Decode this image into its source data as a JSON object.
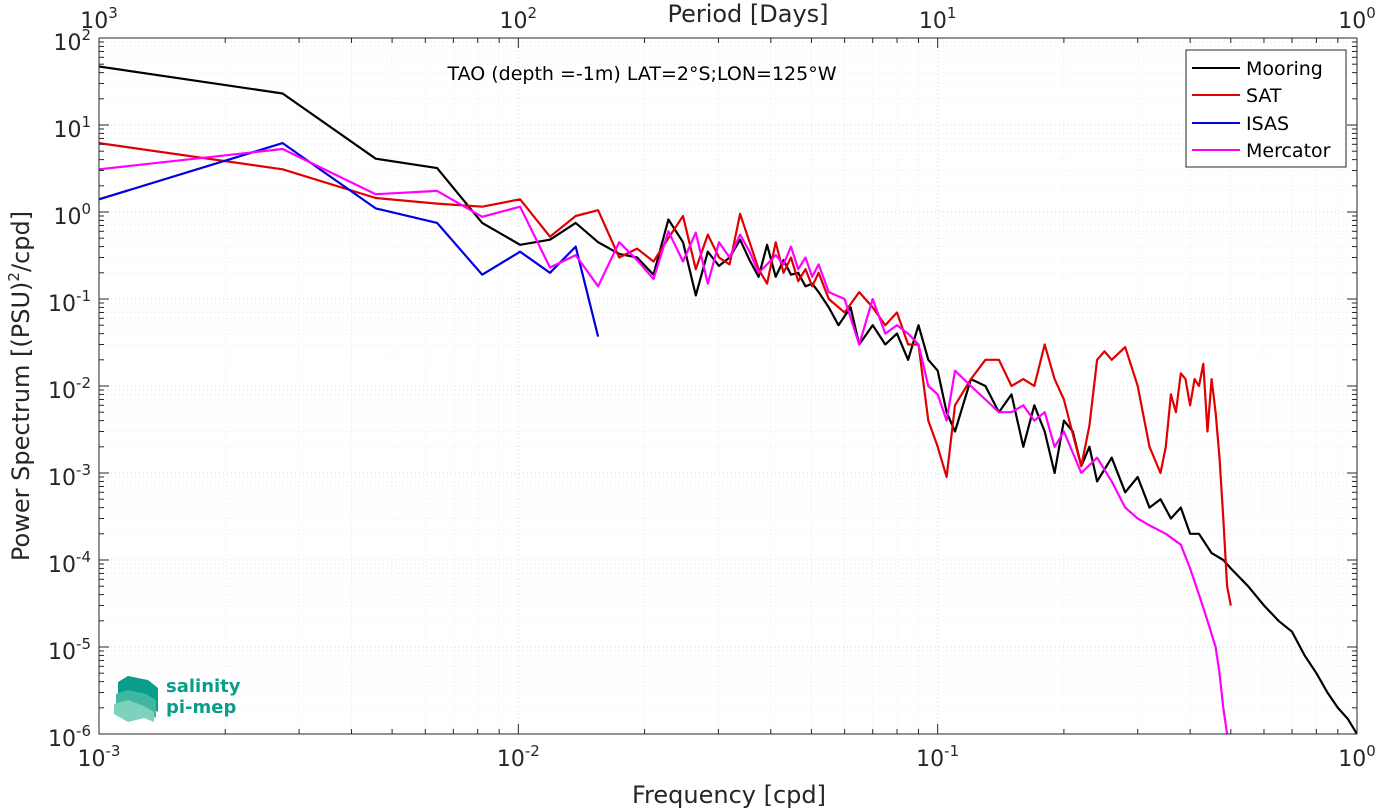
{
  "chart_data": {
    "type": "line",
    "title": "TAO (depth =-1m) LAT=2°S;LON=125°W",
    "xlabel": "Frequency [cpd]",
    "ylabel_parts": [
      "Power Spectrum [(PSU)",
      "2",
      "/cpd]"
    ],
    "top_xlabel": "Period [Days]",
    "x_scale": "log",
    "y_scale": "log",
    "xlim": [
      0.001,
      1
    ],
    "ylim": [
      1e-06,
      100
    ],
    "grid": true,
    "legend_position": "top-right",
    "x_ticks": [
      {
        "value": 0.001,
        "base": "10",
        "exp": "-3"
      },
      {
        "value": 0.01,
        "base": "10",
        "exp": "-2"
      },
      {
        "value": 0.1,
        "base": "10",
        "exp": "-1"
      },
      {
        "value": 1,
        "base": "10",
        "exp": "0"
      }
    ],
    "top_ticks": [
      {
        "value": 0.001,
        "base": "10",
        "exp": "3"
      },
      {
        "value": 0.01,
        "base": "10",
        "exp": "2"
      },
      {
        "value": 0.1,
        "base": "10",
        "exp": "1"
      },
      {
        "value": 1,
        "base": "10",
        "exp": "0"
      }
    ],
    "y_ticks": [
      {
        "value": 100,
        "base": "10",
        "exp": "2"
      },
      {
        "value": 10,
        "base": "10",
        "exp": "1"
      },
      {
        "value": 1,
        "base": "10",
        "exp": "0"
      },
      {
        "value": 0.1,
        "base": "10",
        "exp": "-1"
      },
      {
        "value": 0.01,
        "base": "10",
        "exp": "-2"
      },
      {
        "value": 0.001,
        "base": "10",
        "exp": "-3"
      },
      {
        "value": 0.0001,
        "base": "10",
        "exp": "-4"
      },
      {
        "value": 1e-05,
        "base": "10",
        "exp": "-5"
      },
      {
        "value": 1e-06,
        "base": "10",
        "exp": "-6"
      }
    ],
    "series": [
      {
        "name": "Mooring",
        "color": "#000000",
        "points": [
          [
            0.001,
            47
          ],
          [
            0.00274,
            23
          ],
          [
            0.00457,
            4.1
          ],
          [
            0.0064,
            3.2
          ],
          [
            0.0082,
            0.75
          ],
          [
            0.0101,
            0.42
          ],
          [
            0.0119,
            0.48
          ],
          [
            0.0137,
            0.75
          ],
          [
            0.0155,
            0.45
          ],
          [
            0.0174,
            0.33
          ],
          [
            0.0192,
            0.3
          ],
          [
            0.021,
            0.19
          ],
          [
            0.0228,
            0.82
          ],
          [
            0.0247,
            0.45
          ],
          [
            0.0265,
            0.11
          ],
          [
            0.0283,
            0.35
          ],
          [
            0.0301,
            0.24
          ],
          [
            0.0319,
            0.3
          ],
          [
            0.0338,
            0.48
          ],
          [
            0.0356,
            0.28
          ],
          [
            0.0374,
            0.18
          ],
          [
            0.0392,
            0.42
          ],
          [
            0.0411,
            0.18
          ],
          [
            0.0429,
            0.28
          ],
          [
            0.0447,
            0.19
          ],
          [
            0.0465,
            0.2
          ],
          [
            0.0484,
            0.14
          ],
          [
            0.0502,
            0.15
          ],
          [
            0.052,
            0.12
          ],
          [
            0.055,
            0.08
          ],
          [
            0.058,
            0.05
          ],
          [
            0.062,
            0.08
          ],
          [
            0.065,
            0.03
          ],
          [
            0.07,
            0.05
          ],
          [
            0.075,
            0.03
          ],
          [
            0.08,
            0.04
          ],
          [
            0.085,
            0.02
          ],
          [
            0.09,
            0.05
          ],
          [
            0.095,
            0.02
          ],
          [
            0.1,
            0.015
          ],
          [
            0.105,
            0.005
          ],
          [
            0.11,
            0.003
          ],
          [
            0.12,
            0.012
          ],
          [
            0.13,
            0.01
          ],
          [
            0.14,
            0.005
          ],
          [
            0.15,
            0.008
          ],
          [
            0.16,
            0.002
          ],
          [
            0.17,
            0.006
          ],
          [
            0.18,
            0.003
          ],
          [
            0.19,
            0.001
          ],
          [
            0.2,
            0.004
          ],
          [
            0.21,
            0.003
          ],
          [
            0.22,
            0.0012
          ],
          [
            0.23,
            0.002
          ],
          [
            0.24,
            0.0008
          ],
          [
            0.26,
            0.0015
          ],
          [
            0.28,
            0.0006
          ],
          [
            0.3,
            0.0009
          ],
          [
            0.32,
            0.0004
          ],
          [
            0.34,
            0.0005
          ],
          [
            0.36,
            0.0003
          ],
          [
            0.38,
            0.0004
          ],
          [
            0.4,
            0.0002
          ],
          [
            0.42,
            0.0002
          ],
          [
            0.45,
            0.00012
          ],
          [
            0.48,
            0.0001
          ],
          [
            0.5,
            8e-05
          ],
          [
            0.55,
            5e-05
          ],
          [
            0.6,
            3e-05
          ],
          [
            0.65,
            2e-05
          ],
          [
            0.7,
            1.5e-05
          ],
          [
            0.75,
            8e-06
          ],
          [
            0.8,
            5e-06
          ],
          [
            0.85,
            3e-06
          ],
          [
            0.9,
            2e-06
          ],
          [
            0.95,
            1.5e-06
          ],
          [
            1.0,
            1e-06
          ]
        ]
      },
      {
        "name": "SAT",
        "color": "#e00000",
        "points": [
          [
            0.001,
            6.2
          ],
          [
            0.00274,
            3.1
          ],
          [
            0.00457,
            1.45
          ],
          [
            0.0064,
            1.25
          ],
          [
            0.0082,
            1.15
          ],
          [
            0.0101,
            1.4
          ],
          [
            0.0119,
            0.52
          ],
          [
            0.0137,
            0.9
          ],
          [
            0.0155,
            1.05
          ],
          [
            0.0174,
            0.3
          ],
          [
            0.0192,
            0.38
          ],
          [
            0.021,
            0.27
          ],
          [
            0.0228,
            0.5
          ],
          [
            0.0247,
            0.9
          ],
          [
            0.0265,
            0.22
          ],
          [
            0.0283,
            0.55
          ],
          [
            0.0301,
            0.3
          ],
          [
            0.0319,
            0.25
          ],
          [
            0.0338,
            0.95
          ],
          [
            0.0356,
            0.45
          ],
          [
            0.0374,
            0.22
          ],
          [
            0.0392,
            0.15
          ],
          [
            0.0411,
            0.45
          ],
          [
            0.0429,
            0.2
          ],
          [
            0.0447,
            0.3
          ],
          [
            0.0465,
            0.16
          ],
          [
            0.0484,
            0.22
          ],
          [
            0.0502,
            0.14
          ],
          [
            0.052,
            0.2
          ],
          [
            0.055,
            0.1
          ],
          [
            0.06,
            0.07
          ],
          [
            0.065,
            0.12
          ],
          [
            0.07,
            0.08
          ],
          [
            0.075,
            0.05
          ],
          [
            0.08,
            0.07
          ],
          [
            0.085,
            0.03
          ],
          [
            0.09,
            0.03
          ],
          [
            0.095,
            0.004
          ],
          [
            0.1,
            0.002
          ],
          [
            0.105,
            0.0009
          ],
          [
            0.11,
            0.006
          ],
          [
            0.12,
            0.012
          ],
          [
            0.13,
            0.02
          ],
          [
            0.14,
            0.02
          ],
          [
            0.15,
            0.01
          ],
          [
            0.16,
            0.012
          ],
          [
            0.17,
            0.01
          ],
          [
            0.18,
            0.03
          ],
          [
            0.19,
            0.012
          ],
          [
            0.2,
            0.007
          ],
          [
            0.21,
            0.0028
          ],
          [
            0.22,
            0.0012
          ],
          [
            0.23,
            0.0035
          ],
          [
            0.24,
            0.02
          ],
          [
            0.25,
            0.025
          ],
          [
            0.26,
            0.02
          ],
          [
            0.28,
            0.028
          ],
          [
            0.3,
            0.01
          ],
          [
            0.32,
            0.002
          ],
          [
            0.34,
            0.001
          ],
          [
            0.35,
            0.002
          ],
          [
            0.36,
            0.008
          ],
          [
            0.37,
            0.005
          ],
          [
            0.38,
            0.014
          ],
          [
            0.39,
            0.012
          ],
          [
            0.4,
            0.006
          ],
          [
            0.41,
            0.012
          ],
          [
            0.42,
            0.01
          ],
          [
            0.43,
            0.018
          ],
          [
            0.44,
            0.003
          ],
          [
            0.45,
            0.012
          ],
          [
            0.46,
            0.005
          ],
          [
            0.47,
            0.0015
          ],
          [
            0.48,
            0.0003
          ],
          [
            0.49,
            5e-05
          ],
          [
            0.5,
            3e-05
          ]
        ]
      },
      {
        "name": "ISAS",
        "color": "#0000e0",
        "points": [
          [
            0.001,
            1.4
          ],
          [
            0.00274,
            6.2
          ],
          [
            0.00457,
            1.1
          ],
          [
            0.0064,
            0.75
          ],
          [
            0.0082,
            0.19
          ],
          [
            0.0101,
            0.35
          ],
          [
            0.0119,
            0.2
          ],
          [
            0.0137,
            0.4
          ],
          [
            0.0155,
            0.037
          ]
        ]
      },
      {
        "name": "Mercator",
        "color": "#ff00ff",
        "points": [
          [
            0.001,
            3.1
          ],
          [
            0.00274,
            5.3
          ],
          [
            0.00457,
            1.6
          ],
          [
            0.0064,
            1.75
          ],
          [
            0.0082,
            0.88
          ],
          [
            0.0101,
            1.15
          ],
          [
            0.0119,
            0.23
          ],
          [
            0.0137,
            0.32
          ],
          [
            0.0155,
            0.14
          ],
          [
            0.0174,
            0.45
          ],
          [
            0.0192,
            0.28
          ],
          [
            0.021,
            0.17
          ],
          [
            0.0228,
            0.6
          ],
          [
            0.0247,
            0.27
          ],
          [
            0.0265,
            0.58
          ],
          [
            0.0283,
            0.15
          ],
          [
            0.0301,
            0.45
          ],
          [
            0.0319,
            0.3
          ],
          [
            0.0338,
            0.55
          ],
          [
            0.0356,
            0.35
          ],
          [
            0.0374,
            0.2
          ],
          [
            0.0392,
            0.25
          ],
          [
            0.0411,
            0.32
          ],
          [
            0.0429,
            0.25
          ],
          [
            0.0447,
            0.4
          ],
          [
            0.0465,
            0.22
          ],
          [
            0.0484,
            0.3
          ],
          [
            0.0502,
            0.18
          ],
          [
            0.052,
            0.25
          ],
          [
            0.055,
            0.12
          ],
          [
            0.06,
            0.1
          ],
          [
            0.065,
            0.03
          ],
          [
            0.07,
            0.1
          ],
          [
            0.075,
            0.04
          ],
          [
            0.08,
            0.05
          ],
          [
            0.085,
            0.04
          ],
          [
            0.09,
            0.03
          ],
          [
            0.095,
            0.01
          ],
          [
            0.1,
            0.008
          ],
          [
            0.105,
            0.004
          ],
          [
            0.11,
            0.015
          ],
          [
            0.12,
            0.01
          ],
          [
            0.13,
            0.007
          ],
          [
            0.14,
            0.005
          ],
          [
            0.15,
            0.005
          ],
          [
            0.16,
            0.006
          ],
          [
            0.17,
            0.004
          ],
          [
            0.18,
            0.005
          ],
          [
            0.19,
            0.002
          ],
          [
            0.2,
            0.003
          ],
          [
            0.22,
            0.001
          ],
          [
            0.24,
            0.0015
          ],
          [
            0.26,
            0.0008
          ],
          [
            0.28,
            0.0004
          ],
          [
            0.3,
            0.0003
          ],
          [
            0.32,
            0.00025
          ],
          [
            0.35,
            0.0002
          ],
          [
            0.38,
            0.00015
          ],
          [
            0.4,
            8e-05
          ],
          [
            0.42,
            4e-05
          ],
          [
            0.44,
            2e-05
          ],
          [
            0.46,
            1e-05
          ],
          [
            0.47,
            5e-06
          ],
          [
            0.48,
            2e-06
          ],
          [
            0.49,
            1e-06
          ]
        ]
      }
    ]
  },
  "logo": {
    "line1": "salinity",
    "line2": "pi-mep",
    "colors": [
      "#0a9d8a",
      "#3fb8a2",
      "#7dd1bd"
    ]
  }
}
